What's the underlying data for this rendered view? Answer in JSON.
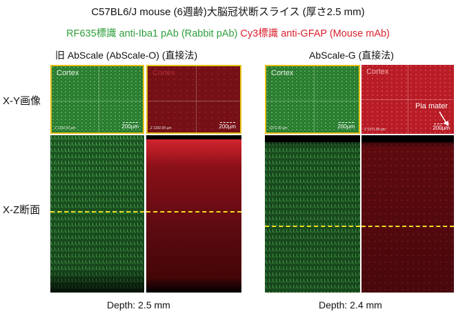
{
  "header": {
    "title": "C57BL6/J mouse (6週齢)大脳冠状断スライス (厚さ2.5 mm)",
    "stain_green": "RF635標識 anti-Iba1 pAb (Rabbit pAb)",
    "stain_red": "Cy3標識 anti-GFAP (Mouse mAb)"
  },
  "columns": [
    {
      "method": "旧 AbScale (AbScale-O) (直接法)",
      "depth": "Depth: 2.5 mm"
    },
    {
      "method": "AbScale-G (直接法)",
      "depth": "Depth: 2.4 mm"
    }
  ],
  "rows": {
    "xy": "X-Y画像",
    "xz": "X-Z断面"
  },
  "panels": {
    "left_green": {
      "region": "Cortex",
      "z": "Z 1192.00 µm",
      "scale": "200µm"
    },
    "left_red": {
      "region": "Cortex",
      "z": "Z 1192.00 µm",
      "scale": "200µm"
    },
    "right_green": {
      "region": "Cortex",
      "z": "1371.00 µm",
      "scale": "200µm"
    },
    "right_red": {
      "region": "Cortex",
      "z": "Z 1371.00 µm",
      "scale": "200µm",
      "annotation": "Pia mater"
    }
  },
  "colors": {
    "green": "#2e9e3a",
    "red": "#d8202c",
    "frame": "#e8c21a",
    "dashed_line": "#f1df1d"
  }
}
